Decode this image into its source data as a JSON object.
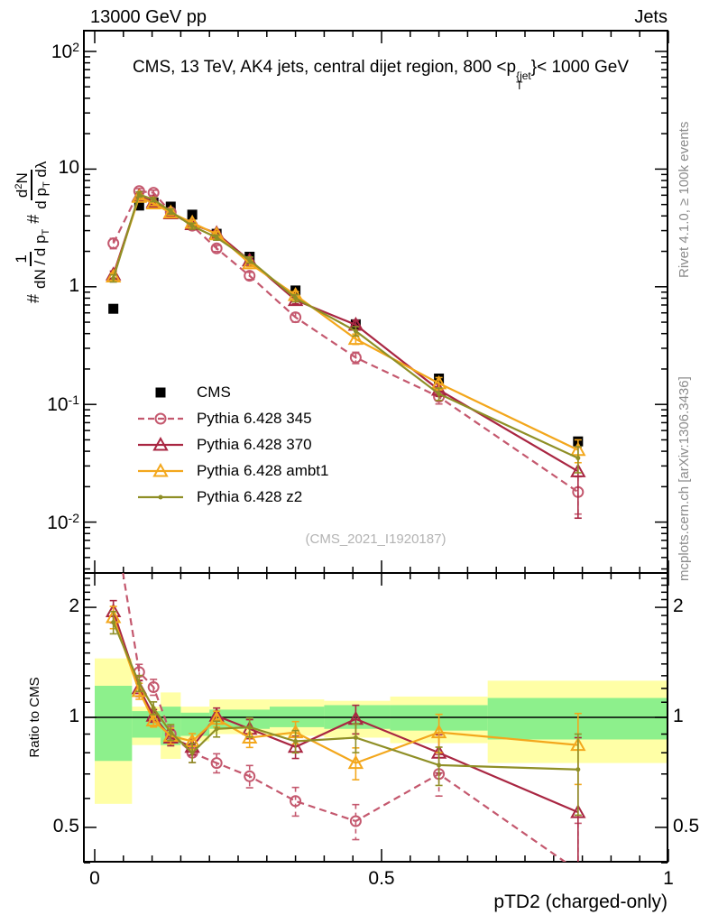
{
  "header": {
    "left": "13000 GeV pp",
    "right": "Jets"
  },
  "title": {
    "pre": "CMS, 13 TeV, AK4 jets, central dijet region, 800 <p",
    "sup": "{jet",
    "sub": "T",
    "post": "}< 1000 GeV"
  },
  "ylabel": {
    "hash1": "#",
    "frac1_num": "1",
    "frac1_den_a": "dN / d p",
    "frac1_den_sub": "T",
    "hash2": "#",
    "frac2_num_a": "d",
    "frac2_num_sup": "2",
    "frac2_num_b": "N",
    "frac2_den_a": "d p",
    "frac2_den_sub": "T",
    "frac2_den_b": " dλ"
  },
  "ratio_ylabel": "Ratio to CMS",
  "xlabel": "pTD2 (charged-only)",
  "watermark": "(CMS_2021_I1920187)",
  "side_notes": {
    "top_right": "Rivet 4.1.0, ≥ 100k events",
    "bottom_right": "mcplots.cern.ch [arXiv:1306.3436]"
  },
  "chart_data": {
    "type": "line",
    "title": "CMS, 13 TeV, AK4 jets, central dijet region, 800 < pT{jet} < 1000 GeV",
    "xlabel": "pTD2 (charged-only)",
    "ylabel": "# 1/(dN/dpT) # d2N/(dpT dlambda)",
    "ylabel_ratio": "Ratio to CMS",
    "xlim": [
      -0.019,
      1.0
    ],
    "x_ticks": {
      "major_values": [
        0,
        0.5,
        1
      ],
      "major_labels": [
        "0",
        "0.5",
        "1"
      ],
      "minor_step": 0.05
    },
    "main_axis": {
      "log": true,
      "range": [
        0.0037,
        150
      ],
      "tick_values": [
        100,
        10,
        1,
        0.1,
        0.01
      ],
      "tick_labels": [
        [
          "10",
          "2"
        ],
        [
          "10",
          ""
        ],
        [
          "1",
          ""
        ],
        [
          "10",
          "-1"
        ],
        [
          "10",
          "-2"
        ]
      ]
    },
    "ratio_axis": {
      "log": true,
      "range": [
        0.4,
        2.48
      ],
      "tick_values": [
        2,
        1,
        0.5
      ],
      "tick_labels": [
        "2",
        "1",
        "0.5"
      ],
      "minor_step": 0.1
    },
    "bin_edges": [
      0,
      0.065,
      0.09,
      0.115,
      0.15,
      0.19,
      0.235,
      0.305,
      0.395,
      0.515,
      0.685,
      1.0
    ],
    "x": [
      0.0325,
      0.0775,
      0.1025,
      0.1325,
      0.17,
      0.2125,
      0.27,
      0.35,
      0.455,
      0.6,
      0.8425
    ],
    "series": [
      {
        "name": "CMS",
        "color": "#000000",
        "marker": "square",
        "line": "none",
        "in_ratio": false,
        "values": [
          0.65,
          4.9,
          5.2,
          4.8,
          4.1,
          2.82,
          1.8,
          0.93,
          0.48,
          0.166,
          0.0485
        ],
        "rel_err": [
          0.04,
          0.03,
          0.03,
          0.03,
          0.03,
          0.03,
          0.03,
          0.04,
          0.05,
          0.06,
          0.08
        ]
      },
      {
        "name": "Pythia 6.428 345",
        "color": "#c4586e",
        "marker": "circle",
        "line": "dashed",
        "in_ratio": true,
        "values": [
          2.34,
          6.5,
          6.3,
          4.3,
          3.3,
          2.12,
          1.24,
          0.55,
          0.25,
          0.116,
          0.018
        ],
        "ratio": [
          3.6,
          1.33,
          1.21,
          0.9,
          0.8,
          0.75,
          0.69,
          0.59,
          0.52,
          0.7,
          0.38
        ],
        "rel_err": [
          0.1,
          0.05,
          0.05,
          0.05,
          0.06,
          0.06,
          0.07,
          0.09,
          0.11,
          0.13,
          0.35
        ]
      },
      {
        "name": "Pythia 6.428 370",
        "color": "#a92642",
        "marker": "triangle",
        "line": "solid",
        "in_ratio": true,
        "values": [
          1.27,
          5.9,
          5.25,
          4.2,
          3.4,
          2.85,
          1.67,
          0.77,
          0.475,
          0.133,
          0.027
        ],
        "ratio": [
          1.95,
          1.2,
          1.01,
          0.88,
          0.83,
          1.01,
          0.93,
          0.83,
          0.99,
          0.8,
          0.55
        ],
        "rel_err": [
          0.07,
          0.05,
          0.04,
          0.05,
          0.05,
          0.05,
          0.06,
          0.07,
          0.09,
          0.12,
          0.6
        ]
      },
      {
        "name": "Pythia 6.428 ambt1",
        "color": "#f3a71c",
        "marker": "triangle",
        "line": "solid",
        "in_ratio": true,
        "values": [
          1.22,
          5.8,
          5.1,
          4.27,
          3.5,
          2.79,
          1.58,
          0.85,
          0.36,
          0.151,
          0.041
        ],
        "ratio": [
          1.88,
          1.18,
          0.98,
          0.89,
          0.86,
          0.99,
          0.88,
          0.91,
          0.75,
          0.91,
          0.84
        ],
        "rel_err": [
          0.07,
          0.05,
          0.04,
          0.05,
          0.05,
          0.05,
          0.06,
          0.07,
          0.1,
          0.12,
          0.22
        ]
      },
      {
        "name": "Pythia 6.428 z2",
        "color": "#8f8f26",
        "marker": "dot",
        "line": "solid",
        "in_ratio": true,
        "values": [
          1.18,
          6.1,
          5.5,
          4.37,
          3.28,
          2.62,
          1.69,
          0.8,
          0.42,
          0.123,
          0.035
        ],
        "ratio": [
          1.82,
          1.24,
          1.06,
          0.91,
          0.8,
          0.93,
          0.94,
          0.86,
          0.88,
          0.74,
          0.72
        ],
        "rel_err": [
          0.07,
          0.05,
          0.04,
          0.05,
          0.06,
          0.05,
          0.06,
          0.07,
          0.09,
          0.12,
          0.25
        ]
      }
    ],
    "bands": {
      "edges": [
        0,
        0.065,
        0.115,
        0.15,
        0.2,
        0.305,
        0.4,
        0.515,
        0.685,
        1.0
      ],
      "yellow": [
        [
          0.58,
          1.45
        ],
        [
          0.84,
          1.07
        ],
        [
          0.77,
          1.17
        ],
        [
          0.86,
          1.07
        ],
        [
          0.9,
          1.12
        ],
        [
          0.89,
          1.12
        ],
        [
          0.88,
          1.11
        ],
        [
          0.85,
          1.14
        ],
        [
          0.75,
          1.26
        ]
      ],
      "green": [
        [
          0.76,
          1.22
        ],
        [
          0.88,
          1.04
        ],
        [
          0.84,
          1.07
        ],
        [
          0.89,
          1.03
        ],
        [
          0.93,
          1.05
        ],
        [
          0.94,
          1.07
        ],
        [
          0.93,
          1.08
        ],
        [
          0.92,
          1.08
        ],
        [
          0.87,
          1.13
        ]
      ],
      "yellow_color": "#ffffa6",
      "green_color": "#8df08c"
    },
    "ratio_reference_line": 1.0,
    "legend_position": "middle-left"
  }
}
